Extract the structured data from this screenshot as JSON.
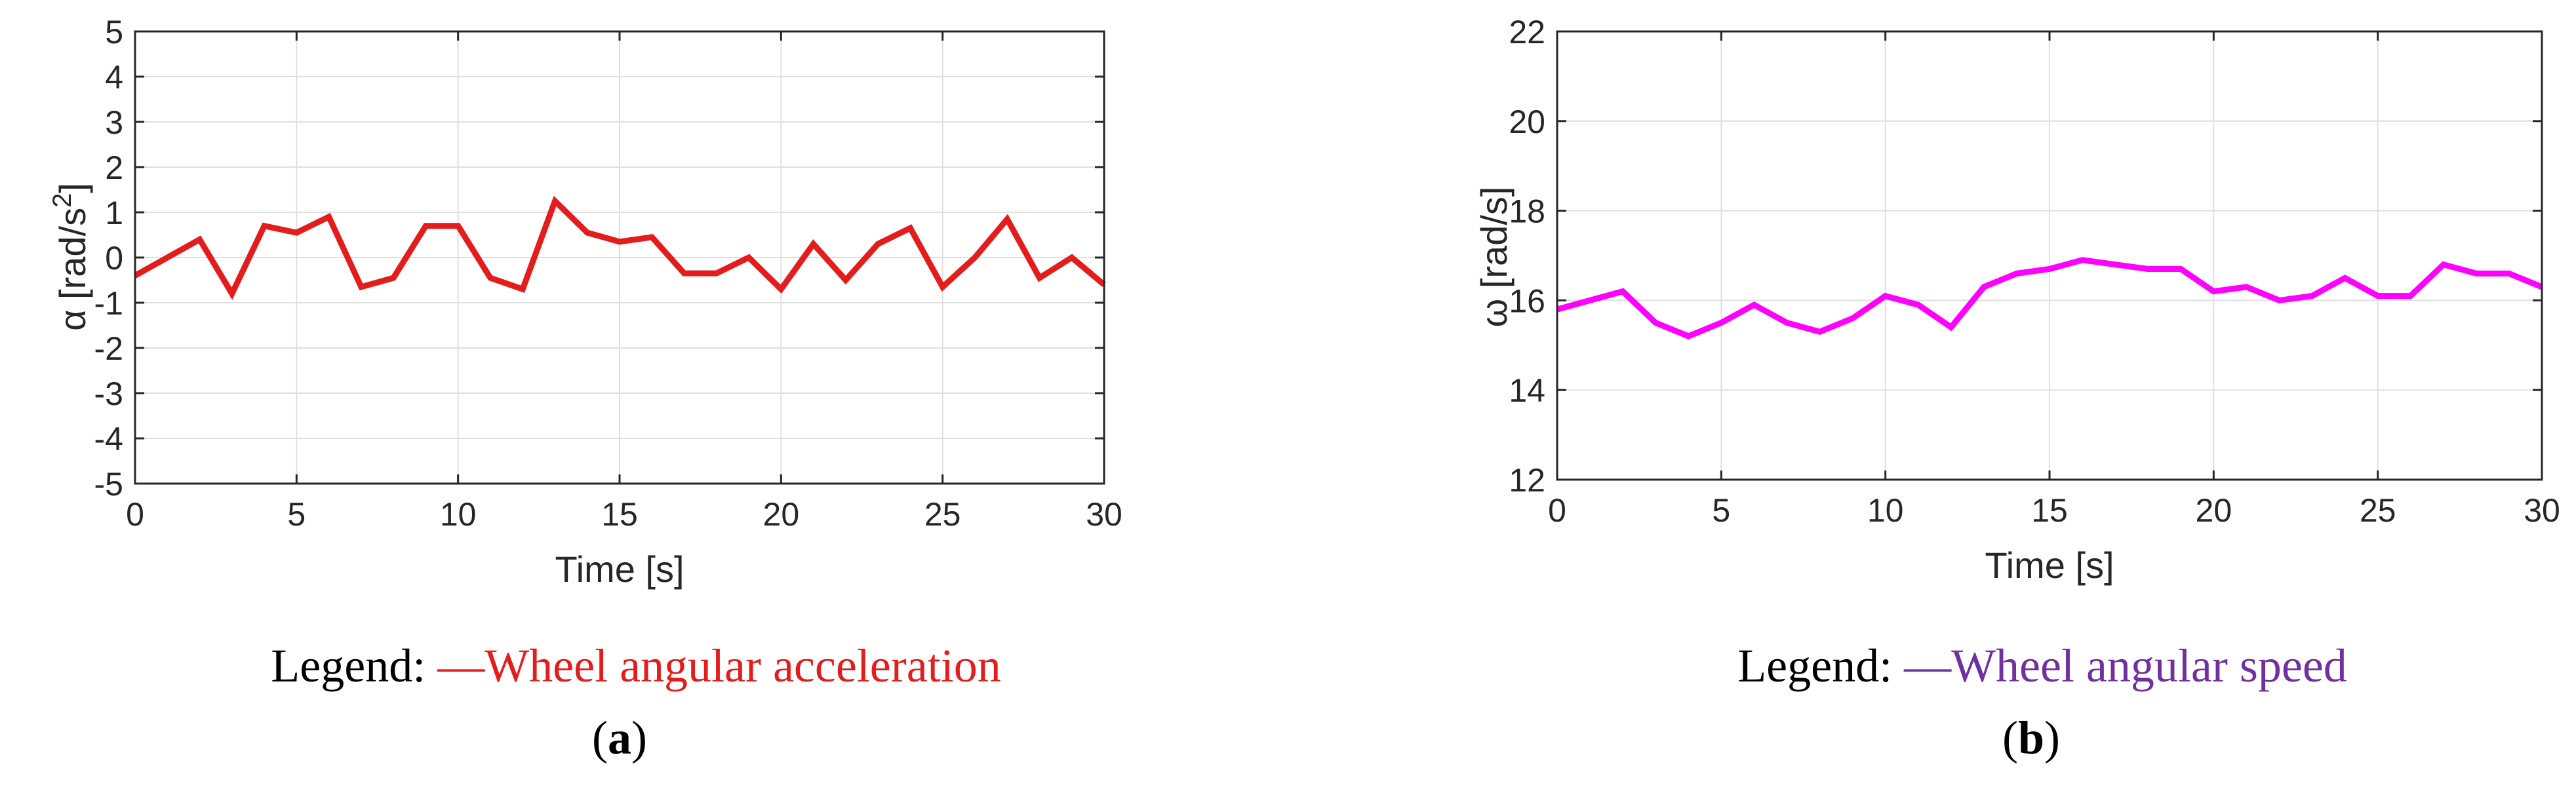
{
  "chart_data": [
    {
      "type": "line",
      "panel": "a",
      "xlabel": "Time [s]",
      "ylabel_main": "α [rad/s",
      "ylabel_sup": "2",
      "ylabel_end": "]",
      "xlim": [
        0,
        30
      ],
      "ylim": [
        -5,
        5
      ],
      "xticks": [
        0,
        5,
        10,
        15,
        20,
        25,
        30
      ],
      "yticks": [
        -5,
        -4,
        -3,
        -2,
        -1,
        0,
        1,
        2,
        3,
        4,
        5
      ],
      "grid": true,
      "legend_prefix": "Legend: ",
      "legend_entry": "—Wheel angular acceleration",
      "panel_label": "a",
      "series": [
        {
          "color": "#e51c1c",
          "x": [
            0,
            1,
            2,
            3,
            4,
            5,
            6,
            7,
            8,
            9,
            10,
            11,
            12,
            13,
            14,
            15,
            16,
            17,
            18,
            19,
            20,
            21,
            22,
            23,
            24,
            25,
            26,
            27,
            28,
            29,
            30
          ],
          "y": [
            -0.4,
            0.0,
            0.4,
            -0.8,
            0.7,
            0.55,
            0.9,
            -0.65,
            -0.45,
            0.7,
            0.7,
            -0.45,
            -0.7,
            1.25,
            0.55,
            0.35,
            0.45,
            -0.35,
            -0.35,
            0.0,
            -0.7,
            0.3,
            -0.5,
            0.3,
            0.65,
            -0.65,
            0.0,
            0.85,
            -0.45,
            0.0,
            -0.6
          ]
        }
      ]
    },
    {
      "type": "line",
      "panel": "b",
      "xlabel": "Time [s]",
      "ylabel_main": "ω [rad/s]",
      "xlim": [
        0,
        30
      ],
      "ylim": [
        12,
        22
      ],
      "xticks": [
        0,
        5,
        10,
        15,
        20,
        25,
        30
      ],
      "yticks": [
        12,
        14,
        16,
        18,
        20,
        22
      ],
      "grid": true,
      "legend_prefix": "Legend: ",
      "legend_entry": "—Wheel angular speed",
      "panel_label": "b",
      "series": [
        {
          "color": "#ff00ff",
          "x": [
            0,
            1,
            2,
            3,
            4,
            5,
            6,
            7,
            8,
            9,
            10,
            11,
            12,
            13,
            14,
            15,
            16,
            17,
            18,
            19,
            20,
            21,
            22,
            23,
            24,
            25,
            26,
            27,
            28,
            29,
            30
          ],
          "y": [
            15.8,
            16.0,
            16.2,
            15.5,
            15.2,
            15.5,
            15.9,
            15.5,
            15.3,
            15.6,
            16.1,
            15.9,
            15.4,
            16.3,
            16.6,
            16.7,
            16.9,
            16.8,
            16.7,
            16.7,
            16.2,
            16.3,
            16.0,
            16.1,
            16.5,
            16.1,
            16.1,
            16.8,
            16.6,
            16.6,
            16.3
          ]
        }
      ]
    }
  ],
  "colors": {
    "legend_a": "#e51c1c",
    "legend_b": "#7030a0",
    "legend_prefix": "#000000"
  }
}
